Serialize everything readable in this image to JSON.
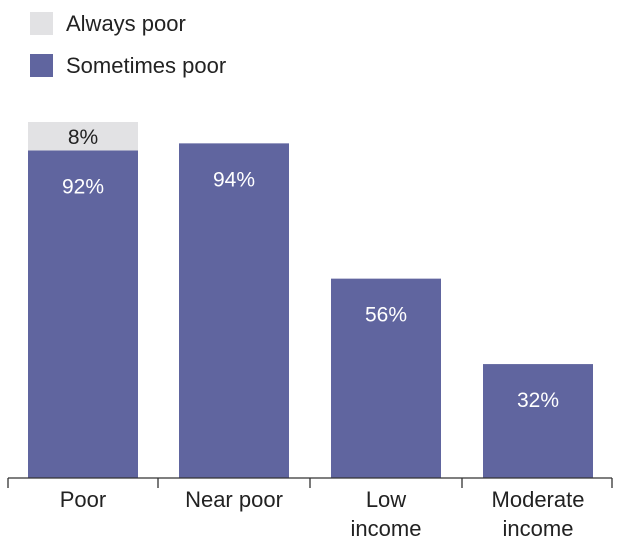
{
  "colors": {
    "always_poor": "#e2e2e4",
    "sometimes_poor": "#60659f",
    "axis": "#333333"
  },
  "chart_data": {
    "type": "bar",
    "stacked": true,
    "categories": [
      [
        "Poor"
      ],
      [
        "Near poor"
      ],
      [
        "Low",
        "income"
      ],
      [
        "Moderate",
        "income"
      ]
    ],
    "series": [
      {
        "name": "Sometimes poor",
        "values": [
          92,
          94,
          56,
          32
        ],
        "labels": [
          "92%",
          "94%",
          "56%",
          "32%"
        ]
      },
      {
        "name": "Always poor",
        "values": [
          8,
          null,
          null,
          null
        ],
        "labels": [
          "8%",
          "",
          "",
          ""
        ]
      }
    ],
    "legend": {
      "placement": "top-left",
      "items": [
        "Always poor",
        "Sometimes poor"
      ]
    },
    "ylim": [
      0,
      100
    ],
    "grid": false
  }
}
